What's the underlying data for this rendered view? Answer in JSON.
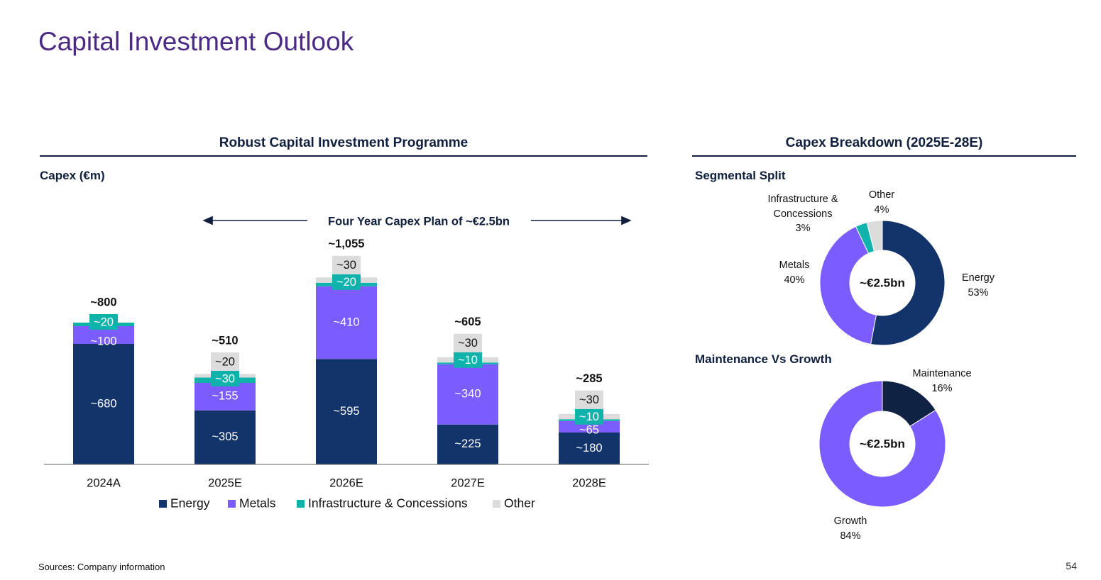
{
  "page": {
    "title": "Capital Investment Outlook",
    "footer_source": "Sources: Company information",
    "page_number": "54"
  },
  "left_panel": {
    "heading": "Robust Capital Investment Programme",
    "unit_label": "Capex (€m)",
    "plan_arrow_text": "Four Year Capex Plan of ~€2.5bn"
  },
  "right_panel": {
    "heading": "Capex Breakdown (2025E-28E)",
    "segment_title": "Segmental Split",
    "maintenance_title": "Maintenance Vs Growth"
  },
  "colors": {
    "energy": "#13346a",
    "metals": "#7b5cff",
    "infra": "#10b3ac",
    "other": "#dcdcdc",
    "maintenance": "#0f2243",
    "growth": "#7b5cff",
    "title": "#4b2a86"
  },
  "chart_data": [
    {
      "type": "bar",
      "stacked": true,
      "categories": [
        "2024A",
        "2025E",
        "2026E",
        "2027E",
        "2028E"
      ],
      "series": [
        {
          "name": "Energy",
          "values": [
            680,
            305,
            595,
            225,
            180
          ],
          "labels": [
            "~680",
            "~305",
            "~595",
            "~225",
            "~180"
          ]
        },
        {
          "name": "Metals",
          "values": [
            100,
            155,
            410,
            340,
            65
          ],
          "labels": [
            "~100",
            "~155",
            "~410",
            "~340",
            "~65"
          ]
        },
        {
          "name": "Infrastructure & Concessions",
          "values": [
            20,
            30,
            20,
            10,
            10
          ],
          "labels": [
            "~20",
            "~30",
            "~20",
            "~10",
            "~10"
          ]
        },
        {
          "name": "Other",
          "values": [
            0,
            20,
            30,
            30,
            30
          ],
          "labels": [
            "",
            "~20",
            "~30",
            "~30",
            "~30"
          ]
        }
      ],
      "totals": [
        "~800",
        "~510",
        "~1,055",
        "~605",
        "~285"
      ],
      "ylabel": "Capex (€m)",
      "ylim": [
        0,
        1055
      ],
      "grid": false,
      "legend_position": "bottom"
    },
    {
      "type": "pie",
      "donut": true,
      "title": "Segmental Split",
      "center_label": "~€2.5bn",
      "slices": [
        {
          "name": "Energy",
          "value": 53,
          "label": "53%"
        },
        {
          "name": "Metals",
          "value": 40,
          "label": "40%"
        },
        {
          "name": "Infrastructure & Concessions",
          "value": 3,
          "label": "3%"
        },
        {
          "name": "Other",
          "value": 4,
          "label": "4%"
        }
      ]
    },
    {
      "type": "pie",
      "donut": true,
      "title": "Maintenance Vs Growth",
      "center_label": "~€2.5bn",
      "slices": [
        {
          "name": "Maintenance",
          "value": 16,
          "label": "16%"
        },
        {
          "name": "Growth",
          "value": 84,
          "label": "84%"
        }
      ]
    }
  ]
}
